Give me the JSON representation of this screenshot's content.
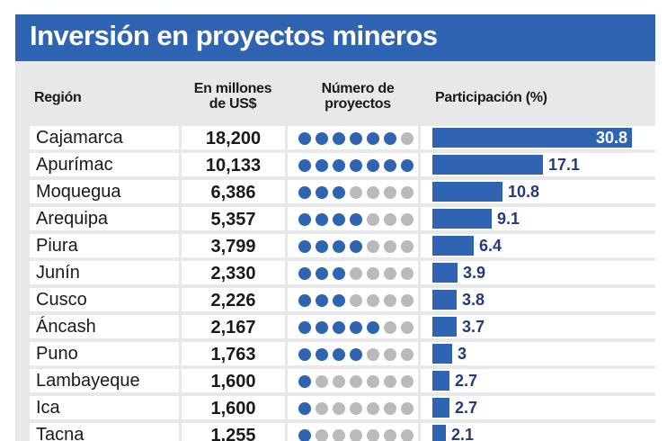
{
  "title": "Inversión en proyectos mineros",
  "headers": {
    "region": "Región",
    "investment_line1": "En millones",
    "investment_line2": "de US$",
    "projects_line1": "Número de",
    "projects_line2": "proyectos",
    "share": "Participación (%)"
  },
  "colors": {
    "brand_blue": "#2f64b3",
    "dot_inactive": "#b9babc",
    "label_dark_blue": "#243a7a",
    "panel_gray": "#e7e8e9"
  },
  "chart_data": {
    "type": "table",
    "columns": [
      "Región",
      "En millones de US$",
      "Número de proyectos",
      "Participación (%)"
    ],
    "dots_total": 7,
    "rows": [
      {
        "region": "Cajamarca",
        "investment": "18,200",
        "projects": 6,
        "share": 30.8,
        "share_label": "30.8"
      },
      {
        "region": "Apurímac",
        "investment": "10,133",
        "projects": 7,
        "share": 17.1,
        "share_label": "17.1"
      },
      {
        "region": "Moquegua",
        "investment": "6,386",
        "projects": 3,
        "share": 10.8,
        "share_label": "10.8"
      },
      {
        "region": "Arequipa",
        "investment": "5,357",
        "projects": 4,
        "share": 9.1,
        "share_label": "9.1"
      },
      {
        "region": "Piura",
        "investment": "3,799",
        "projects": 4,
        "share": 6.4,
        "share_label": "6.4"
      },
      {
        "region": "Junín",
        "investment": "2,330",
        "projects": 3,
        "share": 3.9,
        "share_label": "3.9"
      },
      {
        "region": "Cusco",
        "investment": "2,226",
        "projects": 3,
        "share": 3.8,
        "share_label": "3.8"
      },
      {
        "region": "Áncash",
        "investment": "2,167",
        "projects": 5,
        "share": 3.7,
        "share_label": "3.7"
      },
      {
        "region": "Puno",
        "investment": "1,763",
        "projects": 4,
        "share": 3.0,
        "share_label": "3"
      },
      {
        "region": "Lambayeque",
        "investment": "1,600",
        "projects": 1,
        "share": 2.7,
        "share_label": "2.7"
      },
      {
        "region": "Ica",
        "investment": "1,600",
        "projects": 1,
        "share": 2.7,
        "share_label": "2.7"
      },
      {
        "region": "Tacna",
        "investment": "1,255",
        "projects": 1,
        "share": 2.1,
        "share_label": "2.1"
      }
    ]
  }
}
